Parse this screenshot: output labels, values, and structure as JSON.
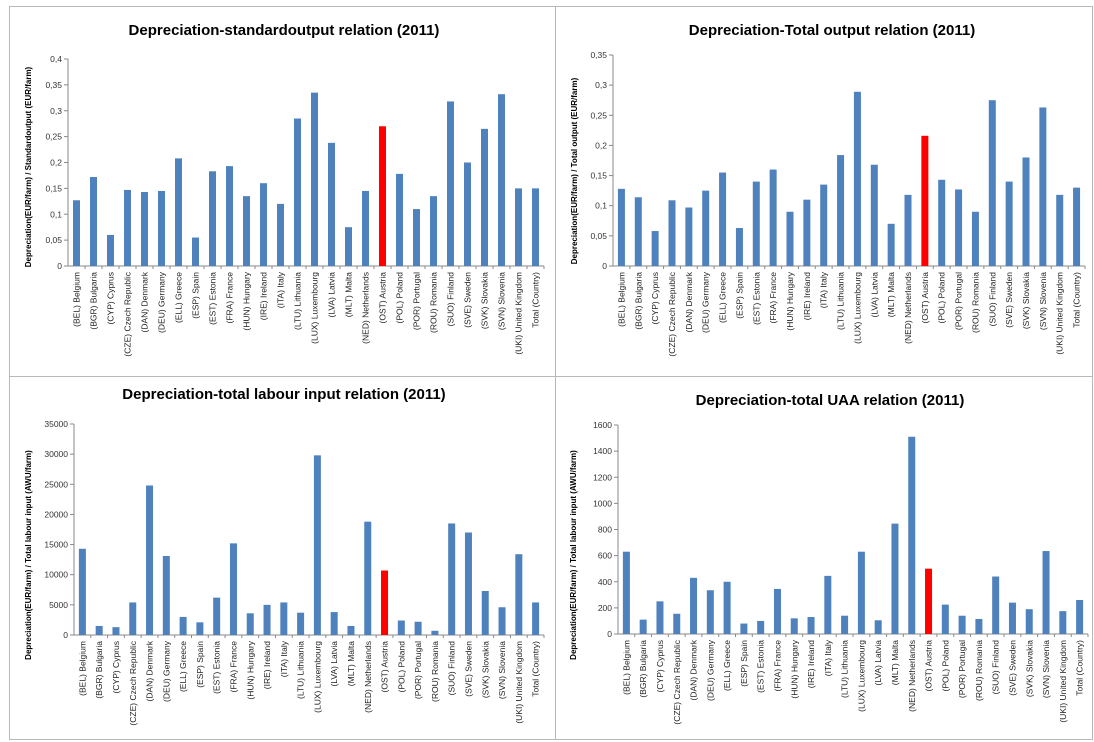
{
  "colors": {
    "bar": "#4f81bd",
    "highlight": "#ff0000"
  },
  "chart_data": [
    {
      "type": "bar",
      "title": "Depreciation-standardoutput relation (2011)",
      "ylabel": "Depreciation(EUR/farm) / Standardoutput (EUR/farm)",
      "ylim": [
        0,
        0.4
      ],
      "yticks": [
        "0",
        "0,05",
        "0,1",
        "0,15",
        "0,2",
        "0,25",
        "0,3",
        "0,35",
        "0,4"
      ],
      "grid": false,
      "highlight": "(OST) Austria",
      "categories": [
        "(BEL) Belgium",
        "(BGR) Bulgaria",
        "(CYP) Cyprus",
        "(CZE) Czech Republic",
        "(DAN) Denmark",
        "(DEU) Germany",
        "(ELL) Greece",
        "(ESP) Spain",
        "(EST) Estonia",
        "(FRA) France",
        "(HUN) Hungary",
        "(IRE) Ireland",
        "(ITA) Italy",
        "(LTU) Lithuania",
        "(LUX) Luxembourg",
        "(LVA) Latvia",
        "(MLT) Malta",
        "(NED) Netherlands",
        "(OST) Austria",
        "(POL) Poland",
        "(POR) Portugal",
        "(ROU) Romania",
        "(SUO) Finland",
        "(SVE) Sweden",
        "(SVK) Slovakia",
        "(SVN) Slovenia",
        "(UKI) United Kingdom",
        "Total (Country)"
      ],
      "values": [
        0.127,
        0.172,
        0.06,
        0.147,
        0.143,
        0.145,
        0.208,
        0.055,
        0.183,
        0.193,
        0.135,
        0.16,
        0.12,
        0.285,
        0.335,
        0.238,
        0.075,
        0.145,
        0.27,
        0.178,
        0.11,
        0.135,
        0.318,
        0.2,
        0.265,
        0.332,
        0.15,
        0.15
      ]
    },
    {
      "type": "bar",
      "title": "Depreciation-Total output relation (2011)",
      "ylabel": "Depreciation(EUR/farm) / Total output (EUR/farm)",
      "ylim": [
        0,
        0.35
      ],
      "yticks": [
        "0",
        "0,05",
        "0,1",
        "0,15",
        "0,2",
        "0,25",
        "0,3",
        "0,35"
      ],
      "grid": false,
      "highlight": "(OST) Austria",
      "categories": [
        "(BEL) Belgium",
        "(BGR) Bulgaria",
        "(CYP) Cyprus",
        "(CZE) Czech Republic",
        "(DAN) Denmark",
        "(DEU) Germany",
        "(ELL) Greece",
        "(ESP) Spain",
        "(EST) Estonia",
        "(FRA) France",
        "(HUN) Hungary",
        "(IRE) Ireland",
        "(ITA) Italy",
        "(LTU) Lithuania",
        "(LUX) Luxembourg",
        "(LVA) Latvia",
        "(MLT) Malta",
        "(NED) Netherlands",
        "(OST) Austria",
        "(POL) Poland",
        "(POR) Portugal",
        "(ROU) Romania",
        "(SUO) Finland",
        "(SVE) Sweden",
        "(SVK) Slovakia",
        "(SVN) Slovenia",
        "(UKI) United Kingdom",
        "Total (Country)"
      ],
      "values": [
        0.128,
        0.114,
        0.058,
        0.109,
        0.097,
        0.125,
        0.155,
        0.063,
        0.14,
        0.16,
        0.09,
        0.11,
        0.135,
        0.184,
        0.289,
        0.168,
        0.07,
        0.118,
        0.216,
        0.143,
        0.127,
        0.09,
        0.275,
        0.14,
        0.18,
        0.263,
        0.118,
        0.13
      ]
    },
    {
      "type": "bar",
      "title": "Depreciation-total labour input relation (2011)",
      "ylabel": "Depreciation(EUR/farm) / Total labour input (AWU/farm)",
      "ylim": [
        0,
        35000
      ],
      "yticks": [
        "0",
        "5000",
        "10000",
        "15000",
        "20000",
        "25000",
        "30000",
        "35000"
      ],
      "grid": false,
      "highlight": "(OST) Austria",
      "categories": [
        "(BEL) Belgium",
        "(BGR) Bulgaria",
        "(CYP) Cyprus",
        "(CZE) Czech Republic",
        "(DAN) Denmark",
        "(DEU) Germany",
        "(ELL) Greece",
        "(ESP) Spain",
        "(EST) Estonia",
        "(FRA) France",
        "(HUN) Hungary",
        "(IRE) Ireland",
        "(ITA) Italy",
        "(LTU) Lithuania",
        "(LUX) Luxembourg",
        "(LVA) Latvia",
        "(MLT) Malta",
        "(NED) Netherlands",
        "(OST) Austria",
        "(POL) Poland",
        "(POR) Portugal",
        "(ROU) Romania",
        "(SUO) Finland",
        "(SVE) Sweden",
        "(SVK) Slovakia",
        "(SVN) Slovenia",
        "(UKI) United Kingdom",
        "Total (Country)"
      ],
      "values": [
        14300,
        1500,
        1300,
        5400,
        24800,
        13100,
        3000,
        2100,
        6200,
        15200,
        3600,
        5000,
        5400,
        3700,
        29800,
        3800,
        1500,
        18800,
        10700,
        2400,
        2200,
        700,
        18500,
        17000,
        7300,
        4600,
        13400,
        5400
      ]
    },
    {
      "type": "bar",
      "title": "Depreciation-total UAA relation (2011)",
      "ylabel": "Depreciation(EUR/farm) / Total labour input (AWU/farm)",
      "ylim": [
        0,
        1600
      ],
      "yticks": [
        "0",
        "200",
        "400",
        "600",
        "800",
        "1000",
        "1200",
        "1400",
        "1600"
      ],
      "grid": false,
      "highlight": "(OST) Austria",
      "categories": [
        "(BEL) Belgium",
        "(BGR) Bulgaria",
        "(CYP) Cyprus",
        "(CZE) Czech Republic",
        "(DAN) Denmark",
        "(DEU) Germany",
        "(ELL) Greece",
        "(ESP) Spain",
        "(EST) Estonia",
        "(FRA) France",
        "(HUN) Hungary",
        "(IRE) Ireland",
        "(ITA) Italy",
        "(LTU) Lithuania",
        "(LUX) Luxembourg",
        "(LVA) Latvia",
        "(MLT) Malta",
        "(NED) Netherlands",
        "(OST) Austria",
        "(POL) Poland",
        "(POR) Portugal",
        "(ROU) Romania",
        "(SUO) Finland",
        "(SVE) Sweden",
        "(SVK) Slovakia",
        "(SVN) Slovenia",
        "(UKI) United Kingdom",
        "Total (Country)"
      ],
      "values": [
        630,
        110,
        250,
        155,
        430,
        335,
        400,
        80,
        100,
        345,
        120,
        130,
        445,
        140,
        630,
        105,
        845,
        1510,
        500,
        225,
        140,
        115,
        440,
        240,
        190,
        635,
        175,
        260
      ]
    }
  ]
}
